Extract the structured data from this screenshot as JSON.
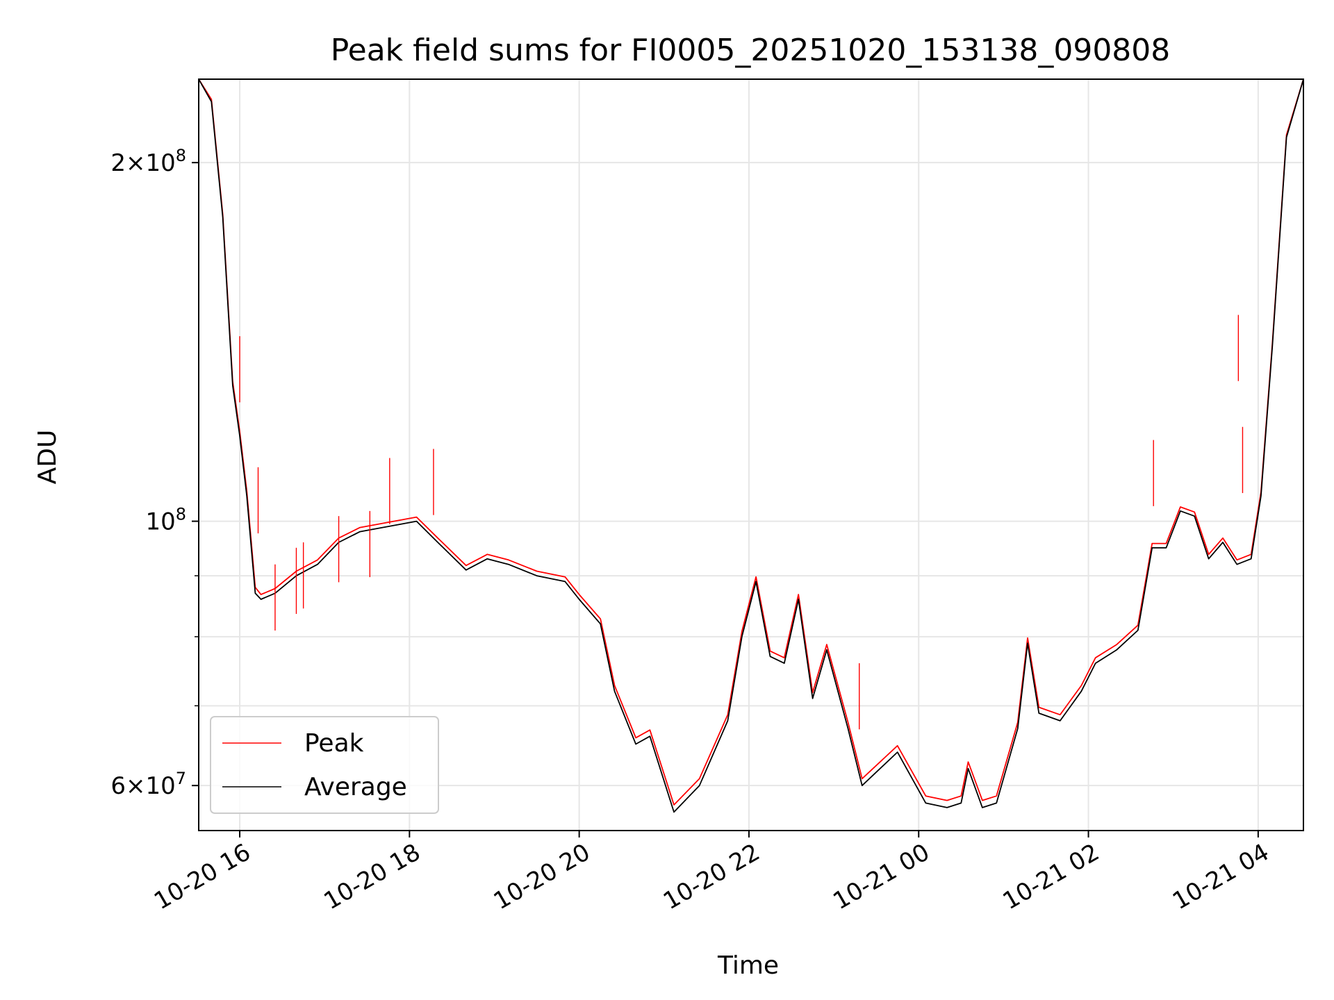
{
  "chart_data": {
    "type": "line",
    "title": "Peak field sums for FI0005_20251020_153138_090808",
    "xlabel": "Time",
    "ylabel": "ADU",
    "yscale": "log",
    "xlim": [
      "2025-10-20 15:31",
      "2025-10-21 04:32"
    ],
    "ylim": [
      55000000,
      235000000
    ],
    "grid": true,
    "legend_position": "lower left",
    "x_tick_labels": [
      "10-20 16",
      "10-20 18",
      "10-20 20",
      "10-20 22",
      "10-21 00",
      "10-21 02",
      "10-21 04"
    ],
    "y_tick_labels": [
      "6 × 10^7",
      "10^8",
      "2 × 10^8"
    ],
    "series": [
      {
        "name": "Average",
        "color": "#000000",
        "x": [
          "2025-10-20 15:31",
          "2025-10-20 15:40",
          "2025-10-20 15:48",
          "2025-10-20 15:55",
          "2025-10-20 16:00",
          "2025-10-20 16:05",
          "2025-10-20 16:11",
          "2025-10-20 16:15",
          "2025-10-20 16:25",
          "2025-10-20 16:40",
          "2025-10-20 16:55",
          "2025-10-20 17:10",
          "2025-10-20 17:25",
          "2025-10-20 17:45",
          "2025-10-20 18:05",
          "2025-10-20 18:20",
          "2025-10-20 18:40",
          "2025-10-20 18:55",
          "2025-10-20 19:10",
          "2025-10-20 19:30",
          "2025-10-20 19:50",
          "2025-10-20 20:00",
          "2025-10-20 20:15",
          "2025-10-20 20:25",
          "2025-10-20 20:40",
          "2025-10-20 20:50",
          "2025-10-20 21:07",
          "2025-10-20 21:25",
          "2025-10-20 21:45",
          "2025-10-20 21:55",
          "2025-10-20 22:05",
          "2025-10-20 22:15",
          "2025-10-20 22:25",
          "2025-10-20 22:35",
          "2025-10-20 22:45",
          "2025-10-20 22:55",
          "2025-10-20 23:10",
          "2025-10-20 23:20",
          "2025-10-20 23:45",
          "2025-10-21 00:05",
          "2025-10-21 00:20",
          "2025-10-21 00:30",
          "2025-10-21 00:35",
          "2025-10-21 00:45",
          "2025-10-21 00:55",
          "2025-10-21 01:10",
          "2025-10-21 01:17",
          "2025-10-21 01:25",
          "2025-10-21 01:40",
          "2025-10-21 01:55",
          "2025-10-21 02:05",
          "2025-10-21 02:20",
          "2025-10-21 02:35",
          "2025-10-21 02:45",
          "2025-10-21 02:55",
          "2025-10-21 03:05",
          "2025-10-21 03:15",
          "2025-10-21 03:25",
          "2025-10-21 03:35",
          "2025-10-21 03:45",
          "2025-10-21 03:55",
          "2025-10-21 04:02",
          "2025-10-21 04:10",
          "2025-10-21 04:20",
          "2025-10-21 04:32"
        ],
        "values": [
          235000000,
          225000000,
          180000000,
          130000000,
          118000000,
          105000000,
          87000000,
          86000000,
          87000000,
          90000000,
          92000000,
          96000000,
          98000000,
          99000000,
          100000000,
          96000000,
          91000000,
          93000000,
          92000000,
          90000000,
          89000000,
          86000000,
          82000000,
          72000000,
          65000000,
          66000000,
          57000000,
          60000000,
          68000000,
          80000000,
          89000000,
          77000000,
          76000000,
          86000000,
          71000000,
          78000000,
          67000000,
          60000000,
          64000000,
          58000000,
          57500000,
          58000000,
          62000000,
          57500000,
          58000000,
          67000000,
          79000000,
          69000000,
          68000000,
          72000000,
          76000000,
          78000000,
          81000000,
          95000000,
          95000000,
          102000000,
          101000000,
          93000000,
          96000000,
          92000000,
          93000000,
          105000000,
          140000000,
          210000000,
          235000000
        ]
      },
      {
        "name": "Peak",
        "color": "#ff0000",
        "x": [
          "2025-10-20 15:31",
          "2025-10-20 15:40",
          "2025-10-20 15:48",
          "2025-10-20 15:55",
          "2025-10-20 16:00",
          "2025-10-20 16:05",
          "2025-10-20 16:11",
          "2025-10-20 16:15",
          "2025-10-20 16:25",
          "2025-10-20 16:40",
          "2025-10-20 16:55",
          "2025-10-20 17:10",
          "2025-10-20 17:25",
          "2025-10-20 17:45",
          "2025-10-20 18:05",
          "2025-10-20 18:20",
          "2025-10-20 18:40",
          "2025-10-20 18:55",
          "2025-10-20 19:10",
          "2025-10-20 19:30",
          "2025-10-20 19:50",
          "2025-10-20 20:00",
          "2025-10-20 20:15",
          "2025-10-20 20:25",
          "2025-10-20 20:40",
          "2025-10-20 20:50",
          "2025-10-20 21:07",
          "2025-10-20 21:25",
          "2025-10-20 21:45",
          "2025-10-20 21:55",
          "2025-10-20 22:05",
          "2025-10-20 22:15",
          "2025-10-20 22:25",
          "2025-10-20 22:35",
          "2025-10-20 22:45",
          "2025-10-20 22:55",
          "2025-10-20 23:10",
          "2025-10-20 23:20",
          "2025-10-20 23:45",
          "2025-10-21 00:05",
          "2025-10-21 00:20",
          "2025-10-21 00:30",
          "2025-10-21 00:35",
          "2025-10-21 00:45",
          "2025-10-21 00:55",
          "2025-10-21 01:10",
          "2025-10-21 01:17",
          "2025-10-21 01:25",
          "2025-10-21 01:40",
          "2025-10-21 01:55",
          "2025-10-21 02:05",
          "2025-10-21 02:20",
          "2025-10-21 02:35",
          "2025-10-21 02:45",
          "2025-10-21 02:55",
          "2025-10-21 03:05",
          "2025-10-21 03:15",
          "2025-10-21 03:25",
          "2025-10-21 03:35",
          "2025-10-21 03:45",
          "2025-10-21 03:55",
          "2025-10-21 04:02",
          "2025-10-21 04:10",
          "2025-10-21 04:20",
          "2025-10-21 04:32"
        ],
        "values": [
          235000000,
          226000000,
          181000000,
          131000000,
          119000000,
          106000000,
          88000000,
          86800000,
          87800000,
          90800000,
          92800000,
          96800000,
          98800000,
          99800000,
          100800000,
          96800000,
          91800000,
          93800000,
          92800000,
          90800000,
          89800000,
          86800000,
          82800000,
          72800000,
          65800000,
          66800000,
          57800000,
          60800000,
          68800000,
          80800000,
          89800000,
          77800000,
          76800000,
          86800000,
          71800000,
          78800000,
          67800000,
          60800000,
          64800000,
          58800000,
          58300000,
          58800000,
          62800000,
          58300000,
          58800000,
          67800000,
          79800000,
          69800000,
          68800000,
          72800000,
          76800000,
          78800000,
          81800000,
          95800000,
          95800000,
          102800000,
          101800000,
          93800000,
          96800000,
          92800000,
          93800000,
          105800000,
          140800000,
          211000000,
          235000000
        ]
      }
    ],
    "peak_spikes": [
      {
        "x": "2025-10-20 16:00",
        "value": 143000000
      },
      {
        "x": "2025-10-20 16:13",
        "value": 111000000
      },
      {
        "x": "2025-10-20 16:25",
        "value": 92000000
      },
      {
        "x": "2025-10-20 16:40",
        "value": 95000000
      },
      {
        "x": "2025-10-20 16:45",
        "value": 96000000
      },
      {
        "x": "2025-10-20 17:10",
        "value": 101000000
      },
      {
        "x": "2025-10-20 17:32",
        "value": 102000000
      },
      {
        "x": "2025-10-20 17:46",
        "value": 113000000
      },
      {
        "x": "2025-10-20 18:17",
        "value": 115000000
      },
      {
        "x": "2025-10-20 23:18",
        "value": 76000000
      },
      {
        "x": "2025-10-21 02:46",
        "value": 117000000
      },
      {
        "x": "2025-10-21 03:46",
        "value": 149000000
      },
      {
        "x": "2025-10-21 03:49",
        "value": 120000000
      }
    ],
    "legend": [
      {
        "label": "Peak",
        "color": "#ff0000"
      },
      {
        "label": "Average",
        "color": "#000000"
      }
    ]
  }
}
